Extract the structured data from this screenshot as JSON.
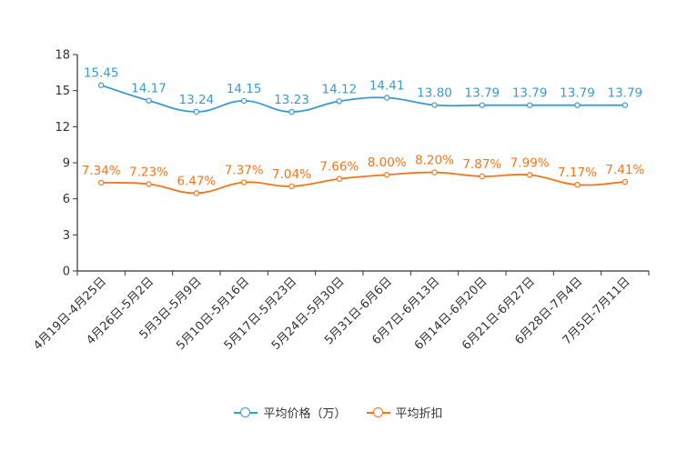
{
  "chart_data": {
    "type": "line",
    "categories": [
      "4月19日-4月25日",
      "4月26日-5月2日",
      "5月3日-5月9日",
      "5月10日-5月16日",
      "5月17日-5月23日",
      "5月24日-5月30日",
      "5月31日-6月6日",
      "6月7日-6月13日",
      "6月14日-6月20日",
      "6月21日-6月27日",
      "6月28日-7月4日",
      "7月5日-7月11日"
    ],
    "ylim": [
      0,
      18
    ],
    "yticks": [
      0,
      3,
      6,
      9,
      12,
      15,
      18
    ],
    "series": [
      {
        "name": "平均价格（万）",
        "color": "#3a9bd0",
        "values": [
          15.45,
          14.17,
          13.24,
          14.15,
          13.23,
          14.12,
          14.41,
          13.8,
          13.79,
          13.79,
          13.79,
          13.79
        ],
        "labels": [
          "15.45",
          "14.17",
          "13.24",
          "14.15",
          "13.23",
          "14.12",
          "14.41",
          "13.80",
          "13.79",
          "13.79",
          "13.79",
          "13.79"
        ]
      },
      {
        "name": "平均折扣",
        "color": "#f5761a",
        "values": [
          7.34,
          7.23,
          6.47,
          7.37,
          7.04,
          7.66,
          8.0,
          8.2,
          7.87,
          7.99,
          7.17,
          7.41
        ],
        "labels": [
          "7.34%",
          "7.23%",
          "6.47%",
          "7.37%",
          "7.04%",
          "7.66%",
          "8.00%",
          "8.20%",
          "7.87%",
          "7.99%",
          "7.17%",
          "7.41%"
        ]
      }
    ]
  },
  "legend": {
    "price_label": "平均价格（万）",
    "discount_label": "平均折扣"
  }
}
